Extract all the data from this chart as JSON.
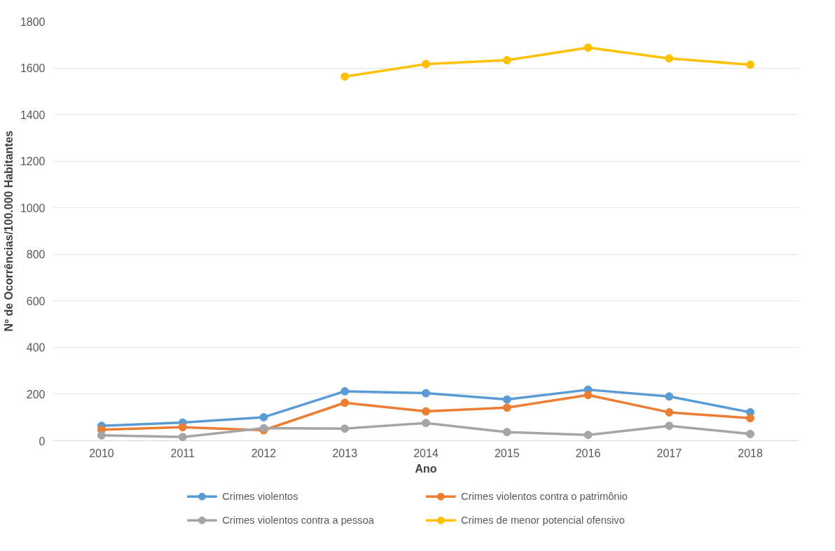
{
  "chart_data": {
    "type": "line",
    "xlabel": "Ano",
    "ylabel": "Nº de Ocorrências/100.000 Habitantes",
    "categories": [
      "2010",
      "2011",
      "2012",
      "2013",
      "2014",
      "2015",
      "2016",
      "2017",
      "2018"
    ],
    "series": [
      {
        "name": "Crimes violentos",
        "color": "#5b9bd5",
        "values": [
          64,
          78,
          101,
          212,
          204,
          177,
          219,
          190,
          122
        ]
      },
      {
        "name": "Crimes violentos contra o patrimônio",
        "color": "#ed7d31",
        "values": [
          47,
          58,
          45,
          163,
          126,
          142,
          196,
          122,
          97
        ]
      },
      {
        "name": "Crimes violentos contra a pessoa",
        "color": "#a5a5a5",
        "values": [
          23,
          16,
          54,
          52,
          76,
          37,
          25,
          64,
          29
        ]
      },
      {
        "name": "Crimes de menor potencial ofensivo",
        "color": "#ffc000",
        "values": [
          null,
          null,
          null,
          1563,
          1617,
          1633,
          1687,
          1641,
          1614
        ]
      }
    ],
    "ylim": [
      0,
      1800
    ],
    "yticks": [
      0,
      200,
      400,
      600,
      800,
      1000,
      1200,
      1400,
      1600,
      1800
    ],
    "grid": "y",
    "legend": "bottom",
    "marker": "circle",
    "line_style": "solid"
  }
}
